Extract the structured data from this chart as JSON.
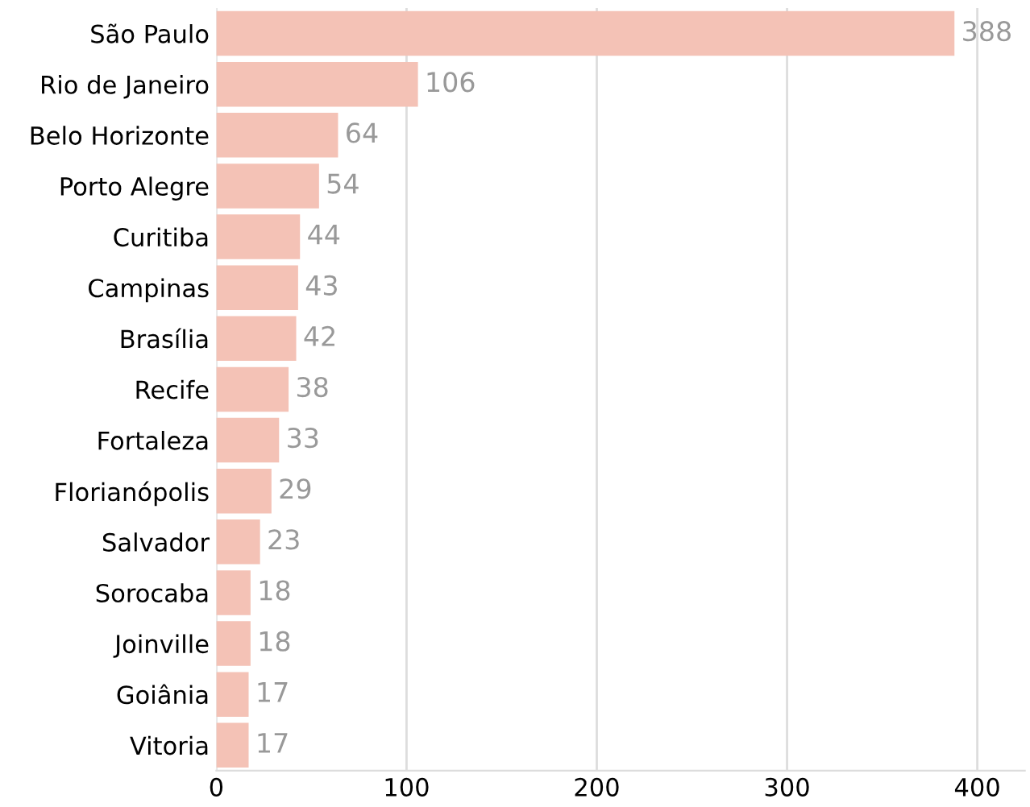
{
  "chart_data": {
    "type": "bar",
    "orientation": "horizontal",
    "categories": [
      "São Paulo",
      "Rio de Janeiro",
      "Belo Horizonte",
      "Porto Alegre",
      "Curitiba",
      "Campinas",
      "Brasília",
      "Recife",
      "Fortaleza",
      "Florianópolis",
      "Salvador",
      "Sorocaba",
      "Joinville",
      "Goiânia",
      "Vitoria"
    ],
    "values": [
      388,
      106,
      64,
      54,
      44,
      43,
      42,
      38,
      33,
      29,
      23,
      18,
      18,
      17,
      17
    ],
    "color": "#f4c2b6",
    "data_labels": true,
    "xlim": [
      0,
      425
    ],
    "xticks": [
      0,
      100,
      200,
      300,
      400
    ],
    "grid": "x",
    "legend": false
  }
}
